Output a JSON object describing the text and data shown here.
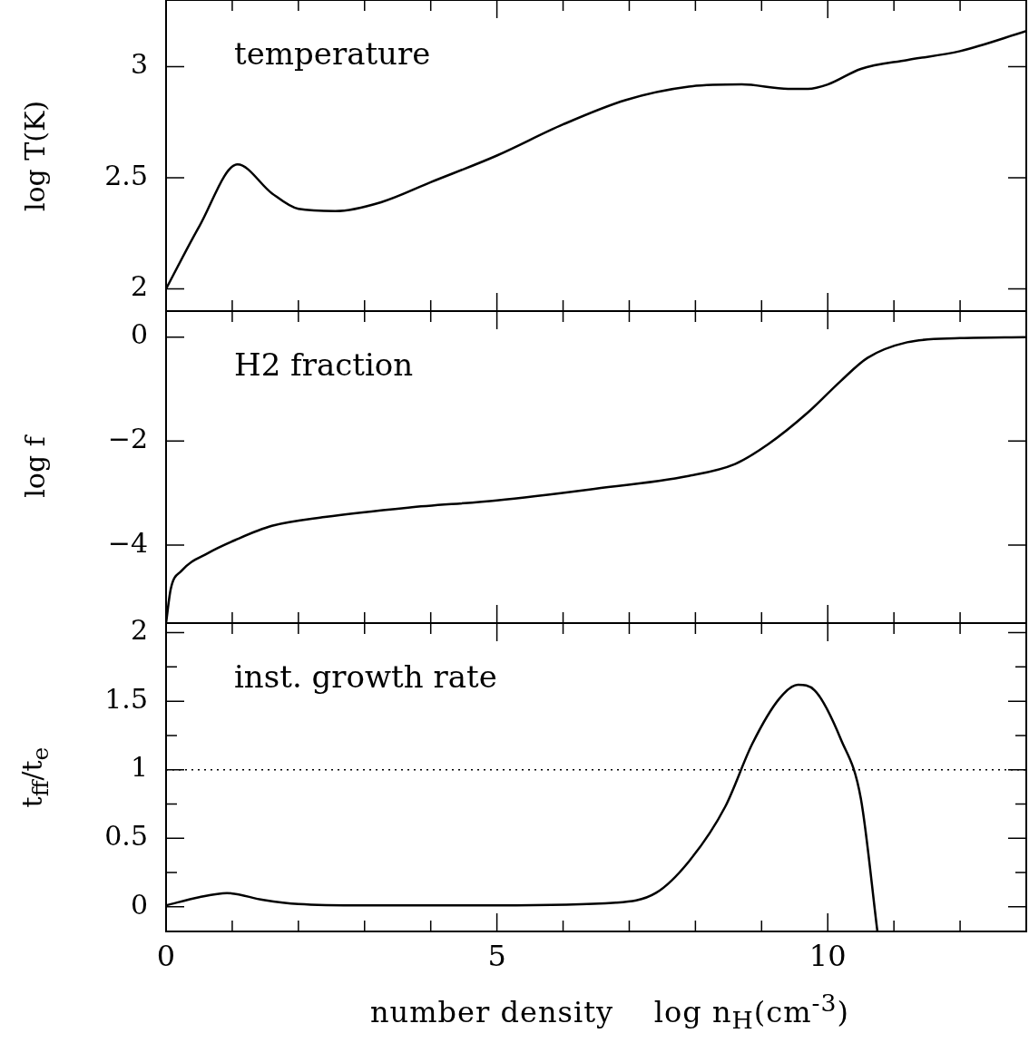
{
  "chart_data": [
    {
      "type": "line",
      "ylabel": "log T(K)",
      "annotations": [
        "temperature"
      ],
      "color": "#000000",
      "tick_labels": "y",
      "x": [
        0,
        0.5,
        1.08,
        1.6,
        2.0,
        2.56,
        3.25,
        4,
        5,
        6,
        6.95,
        7.9,
        8.7,
        9.4,
        9.7,
        10,
        10.5,
        11.2,
        12,
        13
      ],
      "values": [
        2.0,
        2.28,
        2.56,
        2.43,
        2.36,
        2.35,
        2.39,
        2.48,
        2.6,
        2.74,
        2.85,
        2.91,
        2.92,
        2.9,
        2.9,
        2.92,
        2.99,
        3.03,
        3.07,
        3.16
      ],
      "xlim": [
        0,
        13
      ],
      "xticks": [
        0,
        {
          "value": 1,
          "label": null
        },
        {
          "value": 2,
          "label": null
        },
        {
          "value": 3,
          "label": null
        },
        {
          "value": 4,
          "label": null
        },
        5,
        {
          "value": 6,
          "label": null
        },
        {
          "value": 7,
          "label": null
        },
        {
          "value": 8,
          "label": null
        },
        {
          "value": 9,
          "label": null
        },
        10,
        {
          "value": 11,
          "label": null
        },
        {
          "value": 12,
          "label": null
        }
      ],
      "ylim": [
        1.9,
        3.3
      ],
      "yticks": [
        2,
        2.5,
        3
      ]
    },
    {
      "type": "line",
      "ylabel": "log f",
      "annotations": [
        "H2 fraction"
      ],
      "color": "#000000",
      "tick_labels": "y",
      "x": [
        0,
        0.07,
        0.23,
        0.64,
        1.05,
        1.6,
        2.4,
        3.66,
        5,
        6.4,
        7.9,
        8.6,
        9.1,
        9.7,
        10.2,
        10.6,
        11.2,
        12,
        13
      ],
      "values": [
        -5.5,
        -4.85,
        -4.5,
        -4.15,
        -3.9,
        -3.63,
        -3.46,
        -3.28,
        -3.14,
        -2.93,
        -2.67,
        -2.44,
        -2.06,
        -1.45,
        -0.84,
        -0.4,
        -0.1,
        -0.02,
        0
      ],
      "xlim": [
        0,
        13
      ],
      "xticks": [
        0,
        {
          "value": 1,
          "label": null
        },
        {
          "value": 2,
          "label": null
        },
        {
          "value": 3,
          "label": null
        },
        {
          "value": 4,
          "label": null
        },
        5,
        {
          "value": 6,
          "label": null
        },
        {
          "value": 7,
          "label": null
        },
        {
          "value": 8,
          "label": null
        },
        {
          "value": 9,
          "label": null
        },
        10,
        {
          "value": 11,
          "label": null
        },
        {
          "value": 12,
          "label": null
        }
      ],
      "ylim": [
        -5.5,
        0.5
      ],
      "yticks": [
        -4,
        -2,
        0
      ]
    },
    {
      "type": "line",
      "ylabel": "t$_{ff}$/t$_{e}$",
      "xlabel": "number density    log n$_{H}$(cm$^{-3}$)",
      "annotations": [
        "inst. growth rate"
      ],
      "color": "#000000",
      "x": [
        0,
        0.5,
        0.92,
        1.47,
        2,
        3,
        5,
        6.8,
        7.4,
        7.9,
        8.45,
        8.86,
        9.27,
        9.55,
        9.8,
        10.2,
        10.5,
        10.75
      ],
      "values": [
        0.01,
        0.07,
        0.1,
        0.05,
        0.02,
        0.01,
        0.01,
        0.03,
        0.1,
        0.33,
        0.73,
        1.19,
        1.52,
        1.62,
        1.58,
        1.22,
        0.79,
        -0.18
      ],
      "xlim": [
        0,
        13
      ],
      "xticks": [
        0,
        {
          "value": 1,
          "label": null
        },
        {
          "value": 2,
          "label": null
        },
        {
          "value": 3,
          "label": null
        },
        {
          "value": 4,
          "label": null
        },
        5,
        {
          "value": 6,
          "label": null
        },
        {
          "value": 7,
          "label": null
        },
        {
          "value": 8,
          "label": null
        },
        {
          "value": 9,
          "label": null
        },
        10,
        {
          "value": 11,
          "label": null
        },
        {
          "value": 12,
          "label": null
        }
      ],
      "ylim": [
        -0.18,
        2.07
      ],
      "yticks": [
        0,
        {
          "value": 0.25,
          "label": null
        },
        0.5,
        {
          "value": 0.75,
          "label": null
        },
        1,
        {
          "value": 1.25,
          "label": null
        },
        1.5,
        {
          "value": 1.75,
          "label": null
        },
        2
      ],
      "ref_lines": [
        {
          "axis": "y",
          "value": 1,
          "line_style": "dotted"
        }
      ]
    }
  ]
}
